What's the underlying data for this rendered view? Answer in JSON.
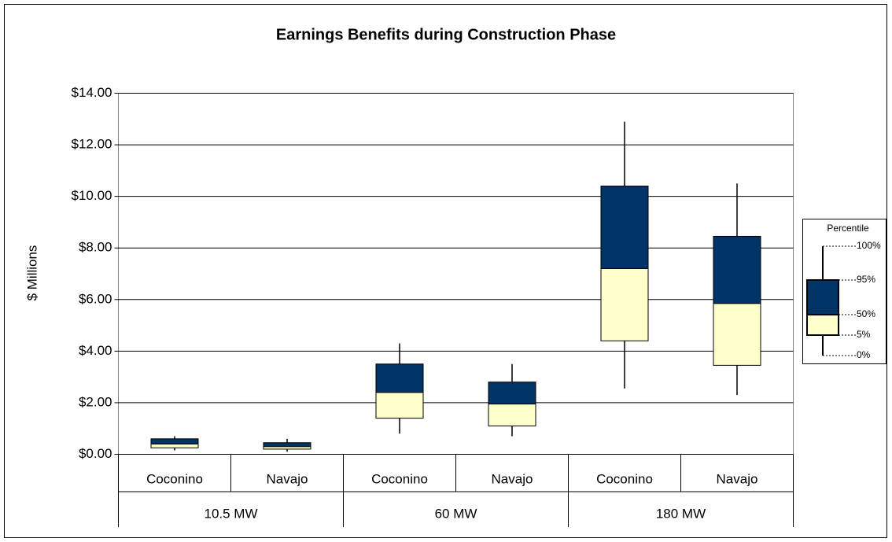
{
  "chart_data": {
    "type": "box",
    "title": "Earnings Benefits during Construction Phase",
    "y_label": "$ Millions",
    "groups": [
      {
        "name": "10.5 MW",
        "categories": [
          "Coconino",
          "Navajo"
        ]
      },
      {
        "name": "60 MW",
        "categories": [
          "Coconino",
          "Navajo"
        ]
      },
      {
        "name": "180 MW",
        "categories": [
          "Coconino",
          "Navajo"
        ]
      }
    ],
    "series": [
      {
        "name": "0%",
        "values": [
          0.15,
          0.1,
          0.8,
          0.7,
          2.55,
          2.3
        ]
      },
      {
        "name": "5%",
        "values": [
          0.25,
          0.2,
          1.4,
          1.1,
          4.4,
          3.45
        ]
      },
      {
        "name": "50%",
        "color": "#ffffcc",
        "values": [
          0.4,
          0.3,
          2.4,
          1.95,
          7.2,
          5.85
        ]
      },
      {
        "name": "95%",
        "color": "#003366",
        "values": [
          0.6,
          0.45,
          3.5,
          2.8,
          10.4,
          8.45
        ]
      },
      {
        "name": "100%",
        "values": [
          0.7,
          0.6,
          4.3,
          3.5,
          12.9,
          10.5
        ]
      }
    ],
    "legend_title": "Percentile",
    "ylim": [
      0,
      14
    ],
    "yticks": [
      {
        "value": 0,
        "label": "$0.00"
      },
      {
        "value": 2,
        "label": "$2.00"
      },
      {
        "value": 4,
        "label": "$4.00"
      },
      {
        "value": 6,
        "label": "$6.00"
      },
      {
        "value": 8,
        "label": "$8.00"
      },
      {
        "value": 10,
        "label": "$10.00"
      },
      {
        "value": 12,
        "label": "$12.00"
      },
      {
        "value": 14,
        "label": "$14.00"
      }
    ],
    "grid": true
  }
}
